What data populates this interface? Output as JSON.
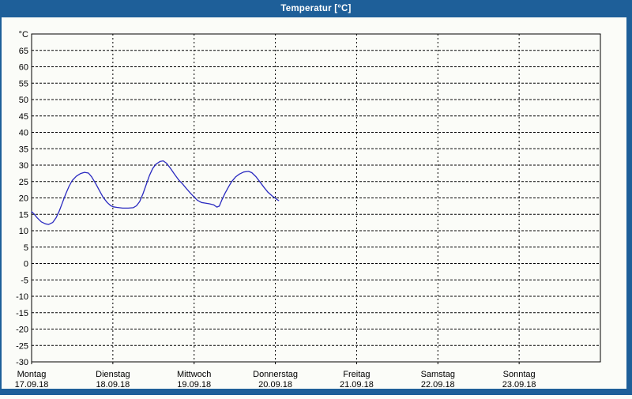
{
  "window": {
    "title": "Temperatur [°C]",
    "title_bar_color": "#1E5F99",
    "frame_color": "#1E5F99",
    "background_color": "#FBFCF8"
  },
  "chart_data": {
    "type": "line",
    "title": "Temperatur [°C]",
    "unit_label": "°C",
    "line_color": "#2A2AC0",
    "axis_color": "#000000",
    "grid": "dashed",
    "legend": "none",
    "ylim": [
      -30,
      70
    ],
    "ytick_step": 5,
    "ytick_labels": [
      65,
      60,
      55,
      50,
      45,
      40,
      35,
      30,
      25,
      20,
      15,
      10,
      5,
      0,
      -5,
      -10,
      -15,
      -20,
      -25,
      -30
    ],
    "xlim_days": [
      0,
      7
    ],
    "x_days": [
      {
        "name": "Montag",
        "date": "17.09.18"
      },
      {
        "name": "Dienstag",
        "date": "18.09.18"
      },
      {
        "name": "Mittwoch",
        "date": "19.09.18"
      },
      {
        "name": "Donnerstag",
        "date": "20.09.18"
      },
      {
        "name": "Freitag",
        "date": "21.09.18"
      },
      {
        "name": "Samstag",
        "date": "22.09.18"
      },
      {
        "name": "Sonntag",
        "date": "23.09.18"
      }
    ],
    "series": [
      {
        "name": "Temperatur",
        "points": [
          [
            0.0,
            15.8
          ],
          [
            0.03,
            15.1
          ],
          [
            0.07,
            13.9
          ],
          [
            0.12,
            12.7
          ],
          [
            0.17,
            12.1
          ],
          [
            0.21,
            11.9
          ],
          [
            0.26,
            12.5
          ],
          [
            0.3,
            13.9
          ],
          [
            0.34,
            16.0
          ],
          [
            0.38,
            18.6
          ],
          [
            0.42,
            21.2
          ],
          [
            0.46,
            23.5
          ],
          [
            0.5,
            25.3
          ],
          [
            0.55,
            26.6
          ],
          [
            0.6,
            27.4
          ],
          [
            0.65,
            27.8
          ],
          [
            0.7,
            27.6
          ],
          [
            0.74,
            26.4
          ],
          [
            0.79,
            24.3
          ],
          [
            0.84,
            22.0
          ],
          [
            0.88,
            20.2
          ],
          [
            0.93,
            18.6
          ],
          [
            0.97,
            17.7
          ],
          [
            1.0,
            17.3
          ],
          [
            1.05,
            17.1
          ],
          [
            1.12,
            16.9
          ],
          [
            1.19,
            16.9
          ],
          [
            1.25,
            17.0
          ],
          [
            1.29,
            17.6
          ],
          [
            1.33,
            18.9
          ],
          [
            1.37,
            21.2
          ],
          [
            1.41,
            24.0
          ],
          [
            1.45,
            26.8
          ],
          [
            1.49,
            29.0
          ],
          [
            1.53,
            30.3
          ],
          [
            1.58,
            31.1
          ],
          [
            1.62,
            31.3
          ],
          [
            1.66,
            30.6
          ],
          [
            1.71,
            29.0
          ],
          [
            1.76,
            27.2
          ],
          [
            1.81,
            25.5
          ],
          [
            1.86,
            24.2
          ],
          [
            1.91,
            22.7
          ],
          [
            1.96,
            21.3
          ],
          [
            2.0,
            20.3
          ],
          [
            2.04,
            19.3
          ],
          [
            2.09,
            18.6
          ],
          [
            2.14,
            18.4
          ],
          [
            2.19,
            18.2
          ],
          [
            2.24,
            17.9
          ],
          [
            2.28,
            17.2
          ],
          [
            2.31,
            17.5
          ],
          [
            2.34,
            19.3
          ],
          [
            2.38,
            21.4
          ],
          [
            2.42,
            23.2
          ],
          [
            2.46,
            24.9
          ],
          [
            2.51,
            26.4
          ],
          [
            2.56,
            27.3
          ],
          [
            2.61,
            27.9
          ],
          [
            2.67,
            28.1
          ],
          [
            2.71,
            27.7
          ],
          [
            2.76,
            26.5
          ],
          [
            2.81,
            24.9
          ],
          [
            2.86,
            23.2
          ],
          [
            2.91,
            21.7
          ],
          [
            2.96,
            20.6
          ],
          [
            3.0,
            19.9
          ],
          [
            3.02,
            19.5
          ],
          [
            3.04,
            19.2
          ]
        ]
      }
    ]
  }
}
